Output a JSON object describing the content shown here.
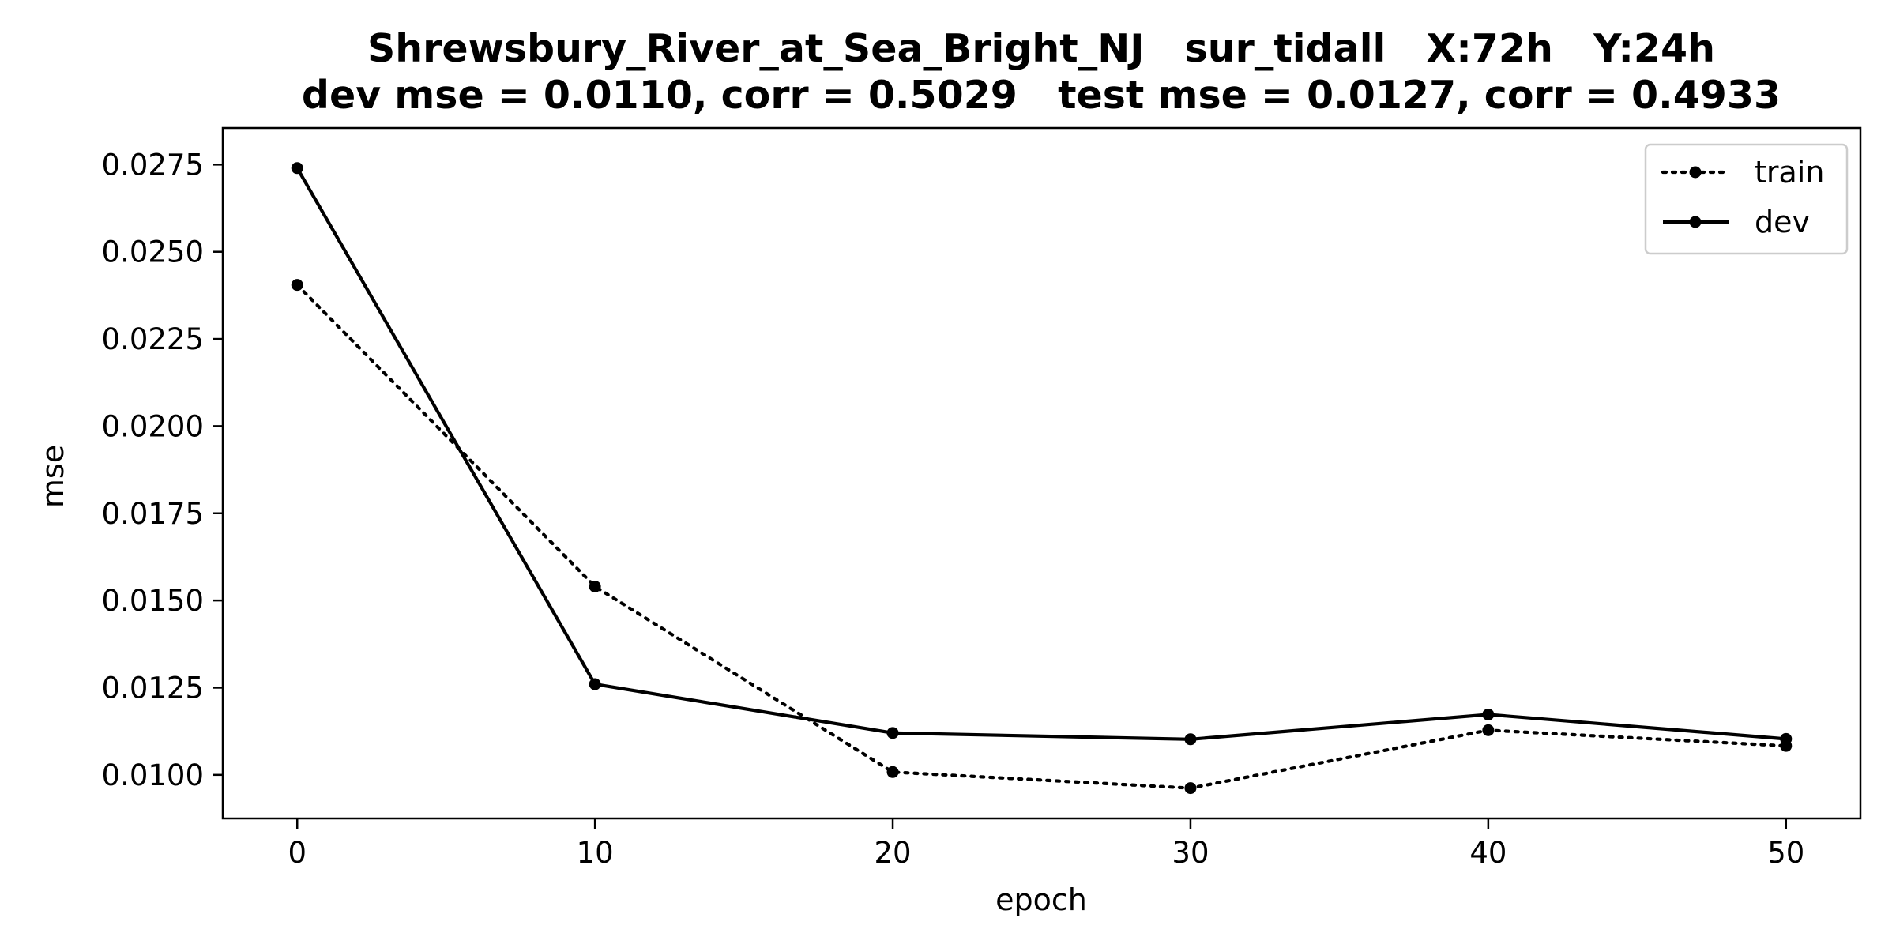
{
  "chart_data": {
    "type": "line",
    "title": "Shrewsbury_River_at_Sea_Bright_NJ   sur_tidall   X:72h   Y:24h",
    "subtitle": "dev mse = 0.0110, corr = 0.5029   test mse = 0.0127, corr = 0.4933",
    "xlabel": "epoch",
    "ylabel": "mse",
    "x": [
      0,
      10,
      20,
      30,
      40,
      50
    ],
    "xlim": [
      -2.5,
      52.5
    ],
    "ylim": [
      0.00875,
      0.02855
    ],
    "xticks": [
      0,
      10,
      20,
      30,
      40,
      50
    ],
    "yticks": [
      0.01,
      0.0125,
      0.015,
      0.0175,
      0.02,
      0.0225,
      0.025,
      0.0275
    ],
    "ytick_labels": [
      "0.0100",
      "0.0125",
      "0.0150",
      "0.0175",
      "0.0200",
      "0.0225",
      "0.0250",
      "0.0275"
    ],
    "grid": false,
    "legend_position": "top-right",
    "series": [
      {
        "name": "train",
        "style": "dotted",
        "color": "#000000",
        "values": [
          0.02405,
          0.0154,
          0.01008,
          0.00962,
          0.01128,
          0.01083
        ]
      },
      {
        "name": "dev",
        "style": "solid",
        "color": "#000000",
        "values": [
          0.0274,
          0.0126,
          0.0112,
          0.01102,
          0.01173,
          0.01103
        ]
      }
    ]
  }
}
